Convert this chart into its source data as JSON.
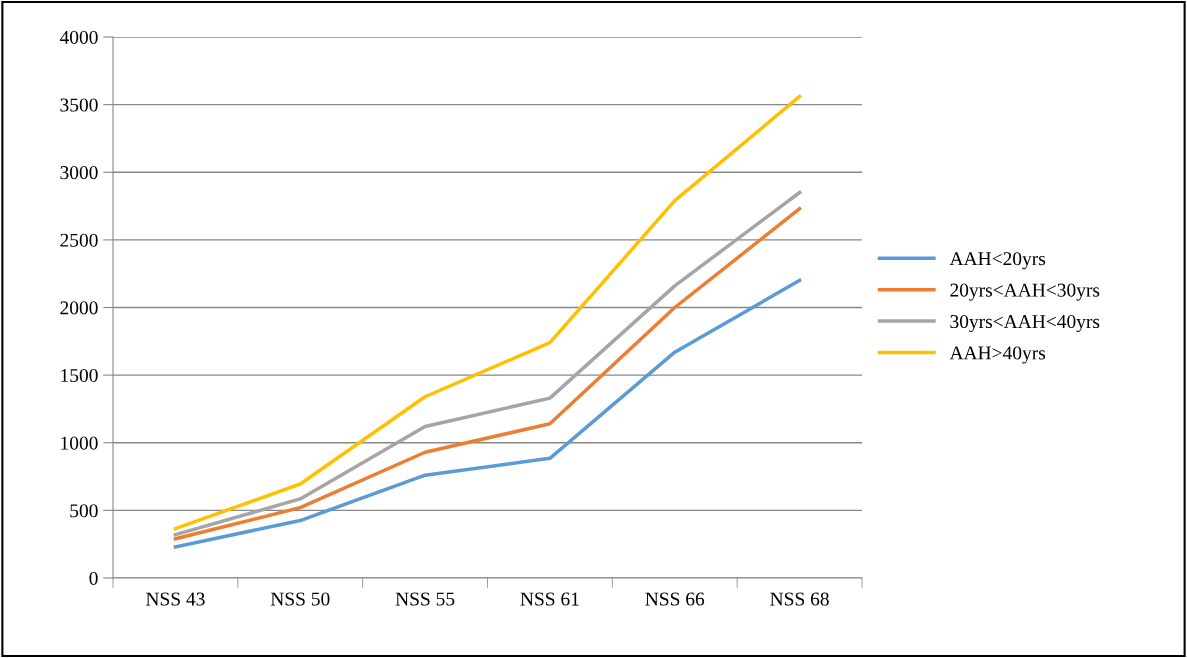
{
  "chart_data": {
    "type": "line",
    "categories": [
      "NSS 43",
      "NSS 50",
      "NSS 55",
      "NSS 61",
      "NSS 66",
      "NSS 68"
    ],
    "series": [
      {
        "name": "AAH<20yrs",
        "color": "#5b9bd5",
        "values": [
          230,
          425,
          760,
          885,
          1670,
          2200
        ]
      },
      {
        "name": "20yrs<AAH<30yrs",
        "color": "#ed7d31",
        "values": [
          290,
          520,
          930,
          1140,
          2000,
          2730
        ]
      },
      {
        "name": "30yrs<AAH<40yrs",
        "color": "#a5a5a5",
        "values": [
          320,
          585,
          1120,
          1330,
          2160,
          2850
        ]
      },
      {
        "name": "AAH>40yrs",
        "color": "#ffc000",
        "values": [
          365,
          695,
          1340,
          1740,
          2790,
          3560
        ]
      }
    ],
    "ylim": [
      0,
      4000
    ],
    "yticks": [
      0,
      500,
      1000,
      1500,
      2000,
      2500,
      3000,
      3500,
      4000
    ],
    "grid": "y",
    "legend": "right",
    "marker": "none",
    "line_style": "solid"
  }
}
